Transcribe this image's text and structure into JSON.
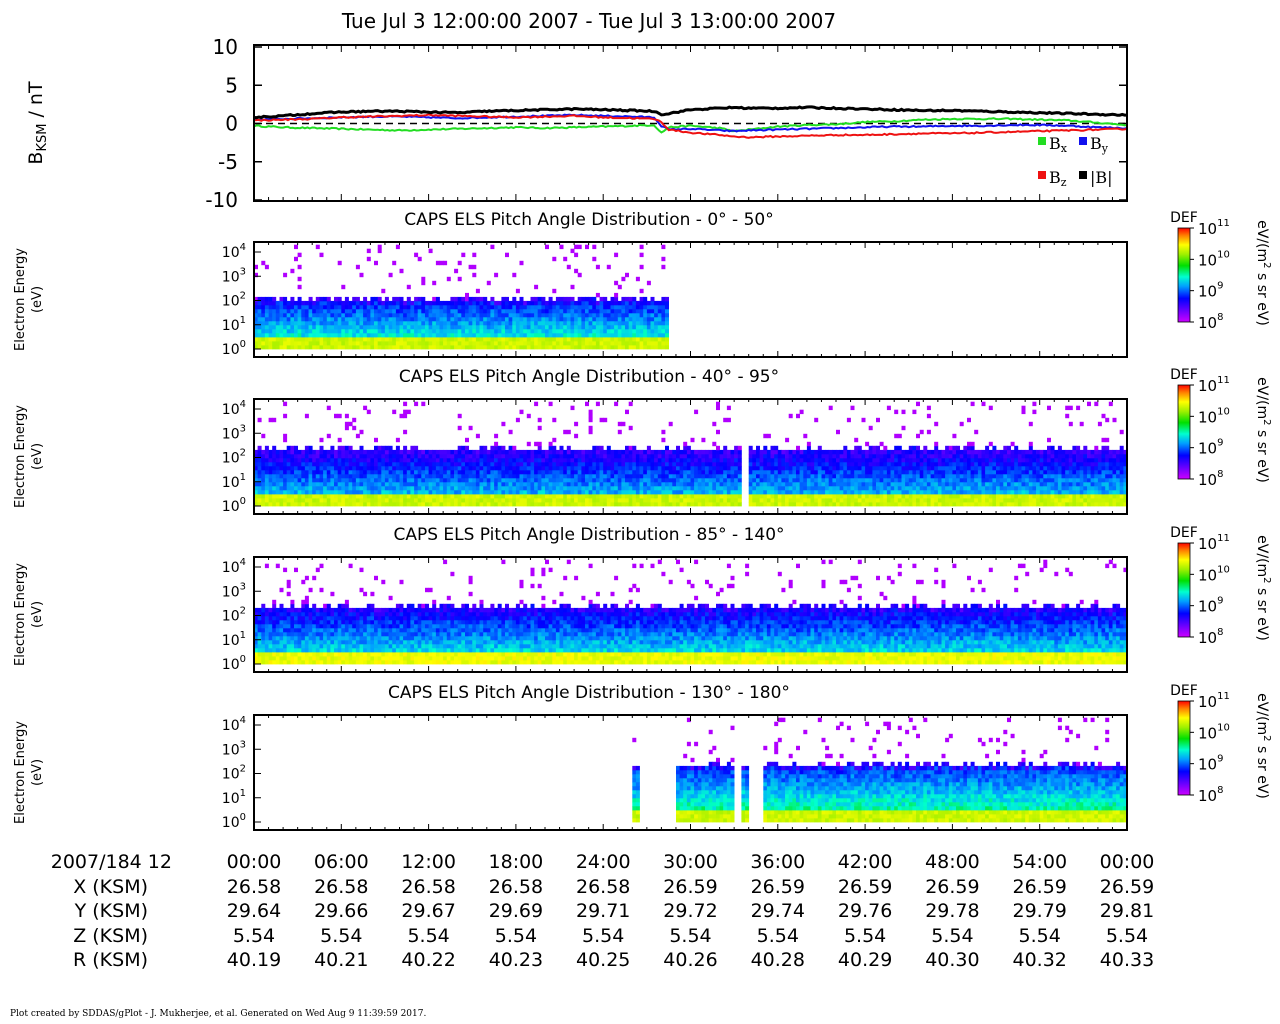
{
  "header": {
    "title": "Tue Jul 3 12:00:00 2007 - Tue Jul 3 13:00:00 2007"
  },
  "footer": {
    "credit": "Plot created by SDDAS/gPlot - J. Mukherjee, et al.  Generated on Wed Aug 9 11:39:59 2017."
  },
  "colors": {
    "bx": "#22dd22",
    "by": "#1111ee",
    "bz": "#ee1111",
    "bmag": "#000000"
  },
  "chart_data": [
    {
      "type": "line",
      "ylabel": "B_KSM / nT",
      "ylim": [
        -10,
        10
      ],
      "yticks": [
        "10",
        "5",
        "0",
        "-5",
        "-10"
      ],
      "zero_line": "dashed",
      "legend": {
        "placement": "bottom-right",
        "entries": [
          "Bx",
          "By",
          "Bz",
          "|B|"
        ]
      },
      "x_minutes": [
        0,
        2,
        4,
        6,
        8,
        10,
        12,
        14,
        16,
        18,
        20,
        22,
        24,
        26,
        27.5,
        28,
        28.5,
        30,
        32,
        33,
        34,
        36,
        38,
        40,
        42,
        44,
        46,
        48,
        50,
        52,
        54,
        56,
        58,
        60
      ],
      "series": [
        {
          "name": "Bx",
          "color": "#22dd22",
          "values": [
            -0.3,
            -0.5,
            -0.6,
            -0.7,
            -0.8,
            -0.9,
            -0.8,
            -0.7,
            -0.6,
            -0.5,
            -0.6,
            -0.5,
            -0.4,
            -0.3,
            -0.2,
            -1.2,
            -0.5,
            -0.3,
            -0.6,
            -1.0,
            -0.8,
            -0.4,
            -0.2,
            -0.1,
            0.2,
            0.3,
            0.5,
            0.6,
            0.6,
            0.6,
            0.5,
            0.4,
            0.1,
            -0.2
          ]
        },
        {
          "name": "By",
          "color": "#1111ee",
          "values": [
            0.5,
            0.6,
            0.7,
            0.8,
            0.9,
            0.9,
            0.8,
            0.7,
            0.8,
            0.9,
            1.0,
            1.1,
            1.0,
            0.9,
            0.8,
            -0.3,
            -0.8,
            -0.7,
            -0.9,
            -1.0,
            -0.9,
            -0.8,
            -0.7,
            -0.6,
            -0.5,
            -0.4,
            -0.4,
            -0.3,
            -0.3,
            -0.2,
            -0.2,
            -0.3,
            -0.5,
            -0.6
          ]
        },
        {
          "name": "Bz",
          "color": "#ee1111",
          "values": [
            0.4,
            0.5,
            0.6,
            0.8,
            0.9,
            1.0,
            1.1,
            1.0,
            0.9,
            0.8,
            0.9,
            1.0,
            0.8,
            0.7,
            0.6,
            0.2,
            -0.8,
            -1.2,
            -1.5,
            -1.7,
            -1.8,
            -1.7,
            -1.6,
            -1.5,
            -1.5,
            -1.4,
            -1.3,
            -1.3,
            -1.2,
            -1.1,
            -1.0,
            -0.9,
            -0.8,
            -0.7
          ]
        },
        {
          "name": "|B|",
          "color": "#000000",
          "values": [
            0.8,
            1.0,
            1.3,
            1.5,
            1.6,
            1.6,
            1.5,
            1.4,
            1.6,
            1.7,
            1.8,
            1.9,
            1.8,
            1.7,
            1.6,
            1.2,
            1.3,
            1.8,
            2.0,
            2.1,
            2.0,
            2.0,
            2.1,
            2.0,
            1.9,
            1.8,
            1.7,
            1.7,
            1.6,
            1.5,
            1.4,
            1.3,
            1.2,
            1.1
          ]
        }
      ]
    },
    {
      "type": "heatmap",
      "title": "CAPS ELS Pitch Angle Distribution - 0° - 50°",
      "ylabel": "Electron Energy (eV)",
      "ytick_exps": [
        0,
        1,
        2,
        3,
        4
      ],
      "colorbar": {
        "label": "DEF",
        "units": "eV/(m² s sr eV)",
        "tick_exps": [
          11,
          10,
          9,
          8
        ]
      },
      "coverage_minutes": [
        [
          0,
          28.5
        ]
      ],
      "upper_edge_log10_eV": 2.0,
      "log10_DEF_low_energy": 10.3,
      "log10_DEF_mid": 9.2
    },
    {
      "type": "heatmap",
      "title": "CAPS ELS Pitch Angle Distribution - 40° - 95°",
      "ylabel": "Electron Energy (eV)",
      "ytick_exps": [
        0,
        1,
        2,
        3,
        4
      ],
      "colorbar": {
        "label": "DEF",
        "units": "eV/(m² s sr eV)",
        "tick_exps": [
          11,
          10,
          9,
          8
        ]
      },
      "coverage_minutes": [
        [
          0,
          33.5
        ],
        [
          34,
          60
        ]
      ],
      "upper_edge_log10_eV": 2.3,
      "log10_DEF_low_energy": 10.3,
      "log10_DEF_mid": 9.0
    },
    {
      "type": "heatmap",
      "title": "CAPS ELS Pitch Angle Distribution - 85° - 140°",
      "ylabel": "Electron Energy (eV)",
      "ytick_exps": [
        0,
        1,
        2,
        3,
        4
      ],
      "colorbar": {
        "label": "DEF",
        "units": "eV/(m² s sr eV)",
        "tick_exps": [
          11,
          10,
          9,
          8
        ]
      },
      "coverage_minutes": [
        [
          0,
          60
        ]
      ],
      "upper_edge_log10_eV": 2.3,
      "log10_DEF_low_energy": 10.4,
      "log10_DEF_mid": 9.1
    },
    {
      "type": "heatmap",
      "title": "CAPS ELS Pitch Angle Distribution - 130° - 180°",
      "ylabel": "Electron Energy (eV)",
      "ytick_exps": [
        0,
        1,
        2,
        3,
        4
      ],
      "colorbar": {
        "label": "DEF",
        "units": "eV/(m² s sr eV)",
        "tick_exps": [
          11,
          10,
          9,
          8
        ]
      },
      "coverage_minutes": [
        [
          26,
          26.5
        ],
        [
          29,
          33
        ],
        [
          33.5,
          34
        ],
        [
          35,
          60
        ]
      ],
      "upper_edge_log10_eV": 2.3,
      "log10_DEF_low_energy": 10.3,
      "log10_DEF_mid": 9.3
    }
  ],
  "ephemeris": {
    "row_labels": [
      "2007/184 12",
      "X (KSM)",
      "Y (KSM)",
      "Z (KSM)",
      "R (KSM)"
    ],
    "times": [
      "00:00",
      "06:00",
      "12:00",
      "18:00",
      "24:00",
      "30:00",
      "36:00",
      "42:00",
      "48:00",
      "54:00",
      "00:00"
    ],
    "x": [
      "26.58",
      "26.58",
      "26.58",
      "26.58",
      "26.58",
      "26.59",
      "26.59",
      "26.59",
      "26.59",
      "26.59",
      "26.59"
    ],
    "y": [
      "29.64",
      "29.66",
      "29.67",
      "29.69",
      "29.71",
      "29.72",
      "29.74",
      "29.76",
      "29.78",
      "29.79",
      "29.81"
    ],
    "z": [
      "5.54",
      "5.54",
      "5.54",
      "5.54",
      "5.54",
      "5.54",
      "5.54",
      "5.54",
      "5.54",
      "5.54",
      "5.54"
    ],
    "r": [
      "40.19",
      "40.21",
      "40.22",
      "40.23",
      "40.25",
      "40.26",
      "40.28",
      "40.29",
      "40.30",
      "40.32",
      "40.33"
    ]
  }
}
